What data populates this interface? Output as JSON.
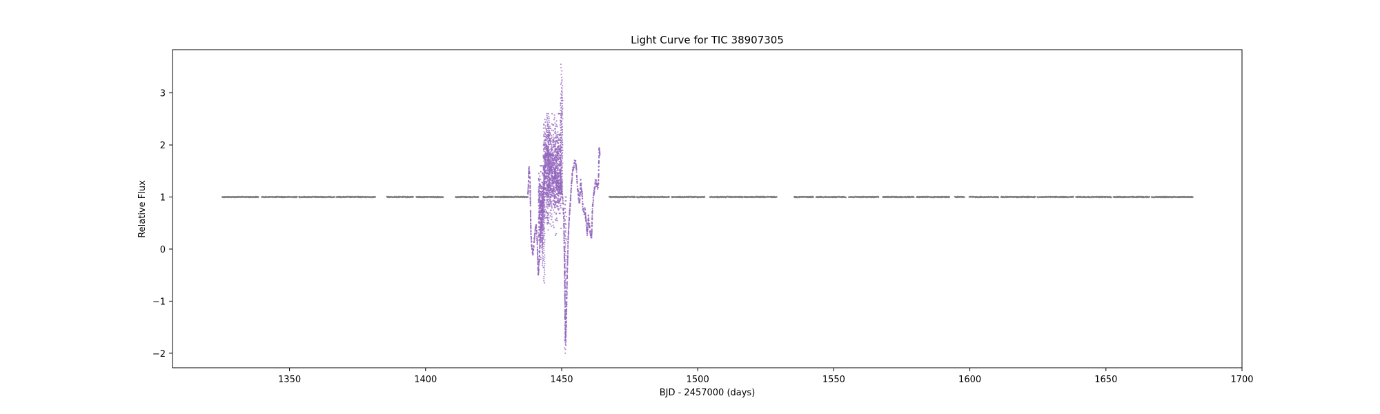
{
  "chart_data": {
    "type": "scatter",
    "title": "Light Curve for TIC 38907305",
    "xlabel": "BJD - 2457000 (days)",
    "ylabel": "Relative Flux",
    "xlim": [
      1307,
      1700
    ],
    "ylim": [
      -2.28,
      3.83
    ],
    "xticks": [
      1350,
      1400,
      1450,
      1500,
      1550,
      1600,
      1650,
      1700
    ],
    "yticks": [
      -2,
      -1,
      0,
      1,
      2,
      3
    ],
    "grid": false,
    "legend": "none",
    "series": [
      {
        "color": "#808080",
        "style": "flat",
        "segments": [
          [
            1325.3,
            1338.5
          ],
          [
            1339.8,
            1352.8
          ],
          [
            1353.5,
            1366.5
          ],
          [
            1367.2,
            1381.5
          ],
          [
            1385.8,
            1395.5
          ],
          [
            1396.6,
            1406.5
          ],
          [
            1411.0,
            1419.5
          ],
          [
            1421.2,
            1424.8
          ],
          [
            1425.5,
            1437.5
          ],
          [
            1467.5,
            1477.0
          ],
          [
            1477.6,
            1489.5
          ],
          [
            1490.5,
            1502.5
          ],
          [
            1504.5,
            1516.5
          ],
          [
            1517.0,
            1529.0
          ],
          [
            1535.5,
            1542.5
          ],
          [
            1543.5,
            1554.5
          ],
          [
            1555.5,
            1566.5
          ],
          [
            1568.0,
            1579.5
          ],
          [
            1580.5,
            1592.5
          ],
          [
            1594.5,
            1598.0
          ],
          [
            1599.8,
            1610.5
          ],
          [
            1611.5,
            1624.0
          ],
          [
            1624.8,
            1638.0
          ],
          [
            1639.0,
            1652.0
          ],
          [
            1652.8,
            1666.0
          ],
          [
            1666.8,
            1682.0
          ]
        ],
        "y": 1.0
      },
      {
        "color": "#9467bd",
        "style": "variable",
        "points": [
          [
            1437.6,
            1.0
          ],
          [
            1438.0,
            1.55
          ],
          [
            1438.4,
            1.3
          ],
          [
            1438.7,
            0.3
          ],
          [
            1439.0,
            0.05
          ],
          [
            1439.4,
            -0.1
          ],
          [
            1439.8,
            0.1
          ],
          [
            1440.2,
            0.3
          ],
          [
            1440.6,
            0.45
          ],
          [
            1441.0,
            0.2
          ],
          [
            1441.4,
            -0.5
          ],
          [
            1441.8,
            -0.2
          ],
          [
            1442.2,
            0.3
          ],
          [
            1442.6,
            0.6
          ],
          [
            1443.0,
            1.0
          ],
          [
            1443.3,
            1.0
          ],
          [
            1443.7,
            1.5
          ],
          [
            1444.2,
            1.8
          ],
          [
            1444.7,
            1.9
          ],
          [
            1445.2,
            1.7
          ],
          [
            1445.7,
            1.5
          ],
          [
            1446.2,
            1.6
          ],
          [
            1446.7,
            1.4
          ],
          [
            1447.2,
            1.3
          ],
          [
            1447.7,
            1.5
          ],
          [
            1448.2,
            1.2
          ],
          [
            1448.6,
            1.3
          ],
          [
            1449.0,
            1.1
          ],
          [
            1449.5,
            1.3
          ],
          [
            1449.9,
            1.2
          ],
          [
            1450.3,
            1.0
          ],
          [
            1450.8,
            0.6
          ],
          [
            1451.2,
            -0.9
          ],
          [
            1451.4,
            -1.8
          ],
          [
            1451.7,
            -1.4
          ],
          [
            1452.0,
            -0.6
          ],
          [
            1452.4,
            0.2
          ],
          [
            1452.8,
            0.6
          ],
          [
            1453.2,
            0.9
          ],
          [
            1453.6,
            1.25
          ],
          [
            1454.0,
            1.5
          ],
          [
            1454.5,
            1.6
          ],
          [
            1455.0,
            1.7
          ],
          [
            1455.4,
            1.55
          ],
          [
            1455.8,
            1.2
          ],
          [
            1456.2,
            1.0
          ],
          [
            1456.6,
            0.9
          ],
          [
            1457.0,
            1.3
          ],
          [
            1457.4,
            1.1
          ],
          [
            1457.8,
            0.8
          ],
          [
            1458.2,
            0.7
          ],
          [
            1458.6,
            0.75
          ],
          [
            1459.0,
            0.5
          ],
          [
            1459.4,
            0.3
          ],
          [
            1459.8,
            0.6
          ],
          [
            1460.2,
            0.45
          ],
          [
            1460.6,
            0.3
          ],
          [
            1461.0,
            0.2
          ],
          [
            1461.3,
            0.75
          ],
          [
            1461.6,
            0.95
          ],
          [
            1462.0,
            1.15
          ],
          [
            1462.4,
            1.3
          ],
          [
            1462.8,
            1.25
          ],
          [
            1463.2,
            1.15
          ],
          [
            1463.5,
            1.25
          ],
          [
            1463.8,
            1.95
          ],
          [
            1464.1,
            1.8
          ]
        ],
        "scatter_bands": [
          [
            1443.2,
            1449.8,
            -0.1,
            2.6
          ],
          [
            1441.5,
            1443.3,
            -0.6,
            1.6
          ]
        ],
        "spikes": [
          [
            1449.9,
            3.55
          ],
          [
            1450.1,
            3.25
          ],
          [
            1450.2,
            3.0
          ],
          [
            1449.7,
            2.9
          ],
          [
            1444.8,
            2.6
          ],
          [
            1445.3,
            2.55
          ],
          [
            1443.6,
            -0.65
          ],
          [
            1443.0,
            -0.35
          ],
          [
            1451.5,
            -2.0
          ],
          [
            1451.3,
            -1.9
          ]
        ]
      }
    ]
  }
}
